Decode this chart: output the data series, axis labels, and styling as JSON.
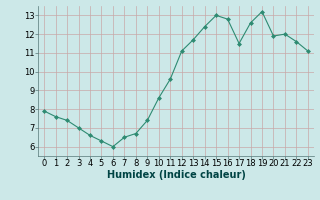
{
  "x": [
    0,
    1,
    2,
    3,
    4,
    5,
    6,
    7,
    8,
    9,
    10,
    11,
    12,
    13,
    14,
    15,
    16,
    17,
    18,
    19,
    20,
    21,
    22,
    23
  ],
  "y": [
    7.9,
    7.6,
    7.4,
    7.0,
    6.6,
    6.3,
    6.0,
    6.5,
    6.7,
    7.4,
    8.6,
    9.6,
    11.1,
    11.7,
    12.4,
    13.0,
    12.8,
    11.5,
    12.6,
    13.2,
    11.9,
    12.0,
    11.6,
    11.1
  ],
  "line_color": "#2e8b72",
  "marker": "D",
  "marker_size": 2,
  "bg_color": "#cce8e8",
  "grid_color": "#b0c8c8",
  "grid_color_major": "#c8a8a8",
  "xlabel": "Humidex (Indice chaleur)",
  "ylim": [
    5.5,
    13.5
  ],
  "xlim": [
    -0.5,
    23.5
  ],
  "yticks": [
    6,
    7,
    8,
    9,
    10,
    11,
    12,
    13
  ],
  "xticks": [
    0,
    1,
    2,
    3,
    4,
    5,
    6,
    7,
    8,
    9,
    10,
    11,
    12,
    13,
    14,
    15,
    16,
    17,
    18,
    19,
    20,
    21,
    22,
    23
  ],
  "label_fontsize": 7,
  "tick_fontsize": 6
}
